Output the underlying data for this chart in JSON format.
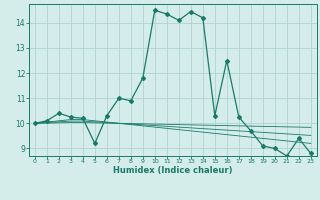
{
  "title": "",
  "xlabel": "Humidex (Indice chaleur)",
  "ylabel": "",
  "bg_color": "#d4ecea",
  "grid_color": "#aed4d0",
  "line_color": "#1a7a6a",
  "xlim": [
    -0.5,
    23.5
  ],
  "ylim": [
    8.7,
    14.75
  ],
  "yticks": [
    9,
    10,
    11,
    12,
    13,
    14
  ],
  "xticks": [
    0,
    1,
    2,
    3,
    4,
    5,
    6,
    7,
    8,
    9,
    10,
    11,
    12,
    13,
    14,
    15,
    16,
    17,
    18,
    19,
    20,
    21,
    22,
    23
  ],
  "series": [
    {
      "x": [
        0,
        1,
        2,
        3,
        4,
        5,
        6,
        7,
        8,
        9,
        10,
        11,
        12,
        13,
        14,
        15,
        16,
        17,
        18,
        19,
        20,
        21,
        22,
        23
      ],
      "y": [
        10.0,
        10.1,
        10.4,
        10.25,
        10.2,
        9.2,
        10.3,
        11.0,
        10.9,
        11.8,
        14.5,
        14.35,
        14.1,
        14.45,
        14.2,
        10.3,
        12.5,
        10.25,
        9.7,
        9.1,
        9.0,
        8.7,
        9.4,
        8.8
      ]
    },
    {
      "x": [
        0,
        1,
        2,
        3,
        4,
        5,
        6,
        7,
        8,
        9,
        10,
        11,
        12,
        13,
        14,
        15,
        16,
        17,
        18,
        19,
        20,
        21,
        22,
        23
      ],
      "y": [
        10.0,
        10.05,
        10.1,
        10.15,
        10.15,
        10.1,
        10.05,
        10.0,
        9.95,
        9.9,
        9.85,
        9.8,
        9.75,
        9.7,
        9.65,
        9.6,
        9.55,
        9.5,
        9.45,
        9.4,
        9.35,
        9.3,
        9.25,
        9.2
      ]
    },
    {
      "x": [
        0,
        1,
        2,
        3,
        4,
        5,
        6,
        7,
        8,
        9,
        10,
        11,
        12,
        13,
        14,
        15,
        16,
        17,
        18,
        19,
        20,
        21,
        22,
        23
      ],
      "y": [
        10.0,
        10.03,
        10.06,
        10.09,
        10.09,
        10.06,
        10.03,
        10.0,
        9.97,
        9.94,
        9.91,
        9.88,
        9.85,
        9.82,
        9.79,
        9.76,
        9.73,
        9.7,
        9.67,
        9.64,
        9.61,
        9.58,
        9.55,
        9.52
      ]
    },
    {
      "x": [
        0,
        1,
        2,
        3,
        4,
        5,
        6,
        7,
        8,
        9,
        10,
        11,
        12,
        13,
        14,
        15,
        16,
        17,
        18,
        19,
        20,
        21,
        22,
        23
      ],
      "y": [
        10.0,
        10.01,
        10.02,
        10.03,
        10.03,
        10.02,
        10.01,
        10.0,
        9.99,
        9.98,
        9.97,
        9.96,
        9.95,
        9.94,
        9.93,
        9.92,
        9.91,
        9.9,
        9.89,
        9.88,
        9.87,
        9.86,
        9.85,
        9.84
      ]
    }
  ]
}
